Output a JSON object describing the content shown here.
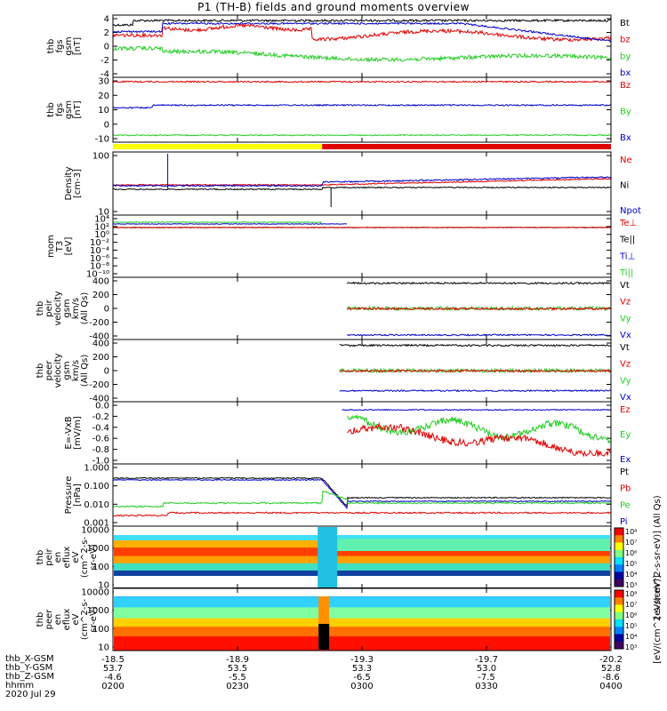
{
  "title": "P1 (TH-B) fields and ground moments overview",
  "colors": {
    "black": "#000000",
    "red": "#e00000",
    "green": "#22cc22",
    "blue": "#0000cc",
    "yellow": "#ffff00"
  },
  "chart_data": [
    {
      "type": "line",
      "id": "fgs",
      "ylabel": [
        "thb",
        "fgs",
        "gsm",
        "[nT]"
      ],
      "ylim": [
        -4,
        4
      ],
      "ticks": [
        4,
        2,
        0,
        -2,
        -4
      ],
      "grid": false,
      "series": [
        {
          "name": "Bt",
          "color": "black"
        },
        {
          "name": "bz",
          "color": "red"
        },
        {
          "name": "by",
          "color": "green"
        },
        {
          "name": "bx",
          "color": "blue"
        }
      ]
    },
    {
      "type": "line",
      "id": "fgs2",
      "ylabel": [
        "thb",
        "fgs",
        "gsm",
        "[nT]"
      ],
      "ylim": [
        -15,
        32
      ],
      "ticks": [
        30,
        20,
        10,
        0,
        -10
      ],
      "grid": false,
      "series": [
        {
          "name": "Bz",
          "color": "red"
        },
        {
          "name": "By",
          "color": "green"
        },
        {
          "name": "Bx",
          "color": "blue"
        }
      ]
    },
    {
      "type": "line",
      "id": "density",
      "ylabel": [
        "Density",
        "[cm-3]"
      ],
      "log": true,
      "ylim": [
        1,
        300
      ],
      "ticks": [
        "100",
        "10"
      ],
      "grid": false,
      "series": [
        {
          "name": "Ne",
          "color": "red"
        },
        {
          "name": "Ni",
          "color": "black"
        },
        {
          "name": "Npot",
          "color": "blue"
        }
      ]
    },
    {
      "type": "line",
      "id": "temp",
      "ylabel": [
        "mom",
        "T3",
        "[eV]"
      ],
      "log": true,
      "ticks": [
        "10⁴",
        "10²",
        "10⁰",
        "10⁻²",
        "10⁻⁴",
        "10⁻⁶",
        "10⁻⁸",
        "10⁻¹⁰"
      ],
      "grid": false,
      "series": [
        {
          "name": "Te⊥",
          "color": "red"
        },
        {
          "name": "Te||",
          "color": "black"
        },
        {
          "name": "Ti⊥",
          "color": "blue"
        },
        {
          "name": "Ti||",
          "color": "green"
        }
      ]
    },
    {
      "type": "line",
      "id": "peir_vel",
      "ylabel": [
        "thb",
        "peir",
        "velocity",
        "gsm",
        "km/s",
        "(All Qs)"
      ],
      "ylim": [
        -430,
        430
      ],
      "ticks": [
        400,
        200,
        0,
        -200,
        -400
      ],
      "grid": false,
      "series": [
        {
          "name": "Vt",
          "color": "black"
        },
        {
          "name": "Vz",
          "color": "red"
        },
        {
          "name": "Vy",
          "color": "green"
        },
        {
          "name": "Vx",
          "color": "blue"
        }
      ]
    },
    {
      "type": "line",
      "id": "peer_vel",
      "ylabel": [
        "thb",
        "peer",
        "velocity",
        "gsm",
        "km/s",
        "(All Qs)"
      ],
      "ylim": [
        -430,
        430
      ],
      "ticks": [
        400,
        200,
        0,
        -200,
        -400
      ],
      "grid": false,
      "series": [
        {
          "name": "Vt",
          "color": "black"
        },
        {
          "name": "Vz",
          "color": "red"
        },
        {
          "name": "Vy",
          "color": "green"
        },
        {
          "name": "Vx",
          "color": "blue"
        }
      ]
    },
    {
      "type": "line",
      "id": "efield",
      "ylabel": [
        "E=-VxB",
        "[mV/m]"
      ],
      "ylim": [
        -1.1,
        0.1
      ],
      "ticks": [
        "0.0",
        "-0.2",
        "-0.4",
        "-0.6",
        "-0.8",
        "-1.0"
      ],
      "grid": false,
      "series": [
        {
          "name": "Ez",
          "color": "red"
        },
        {
          "name": "Ey",
          "color": "green"
        },
        {
          "name": "Ex",
          "color": "blue"
        }
      ]
    },
    {
      "type": "line",
      "id": "pressure",
      "ylabel": [
        "Pressure",
        "[nPa]"
      ],
      "log": true,
      "ticks": [
        "1.000",
        "0.100",
        "0.010",
        "0.001"
      ],
      "grid": false,
      "series": [
        {
          "name": "Pt",
          "color": "black"
        },
        {
          "name": "Pb",
          "color": "red"
        },
        {
          "name": "Pe",
          "color": "green"
        },
        {
          "name": "Pi",
          "color": "blue"
        }
      ]
    },
    {
      "type": "heatmap",
      "id": "peir_en",
      "ylabel": [
        "thb",
        "peir",
        "en",
        "eflux",
        "eV",
        "(cm^2-s-",
        "sr-eV)"
      ],
      "ticks": [
        "10000",
        "1000",
        "100",
        "10"
      ],
      "colorbar": {
        "ticks": [
          "10⁸",
          "10⁷",
          "10⁶",
          "10⁵",
          "10⁴",
          "10³"
        ],
        "label": "[eV/(cm^2-s-sr-eV)] (All Qs)"
      }
    },
    {
      "type": "heatmap",
      "id": "peer_en",
      "ylabel": [
        "thb",
        "peer",
        "en",
        "eflux",
        "eV",
        "(cm^2-s-",
        "sr-eV)"
      ],
      "ticks": [
        "10000",
        "1000",
        "100",
        "10"
      ],
      "colorbar": {
        "ticks": [
          "10⁸",
          "10⁷",
          "10⁶",
          "10⁵",
          "10⁴",
          "10³"
        ],
        "label": "[eV/(cm^2-s-sr-eV)]"
      }
    }
  ],
  "region_bar": {
    "colors": [
      "yellow",
      "red"
    ],
    "split_time": "0245"
  },
  "footer": {
    "labels": [
      "thb_X-GSM",
      "thb_Y-GSM",
      "thb_Z-GSM",
      "hhmm",
      "2020 Jul 29"
    ],
    "columns": [
      {
        "X": "-18.5",
        "Y": "53.7",
        "Z": "-4.6",
        "hhmm": "0200"
      },
      {
        "X": "-18.9",
        "Y": "53.5",
        "Z": "-5.5",
        "hhmm": "0230"
      },
      {
        "X": "-19.3",
        "Y": "53.3",
        "Z": "-6.5",
        "hhmm": "0300"
      },
      {
        "X": "-19.7",
        "Y": "53.0",
        "Z": "-7.5",
        "hhmm": "0330"
      },
      {
        "X": "-20.2",
        "Y": "52.8",
        "Z": "-8.6",
        "hhmm": "0400"
      }
    ]
  }
}
